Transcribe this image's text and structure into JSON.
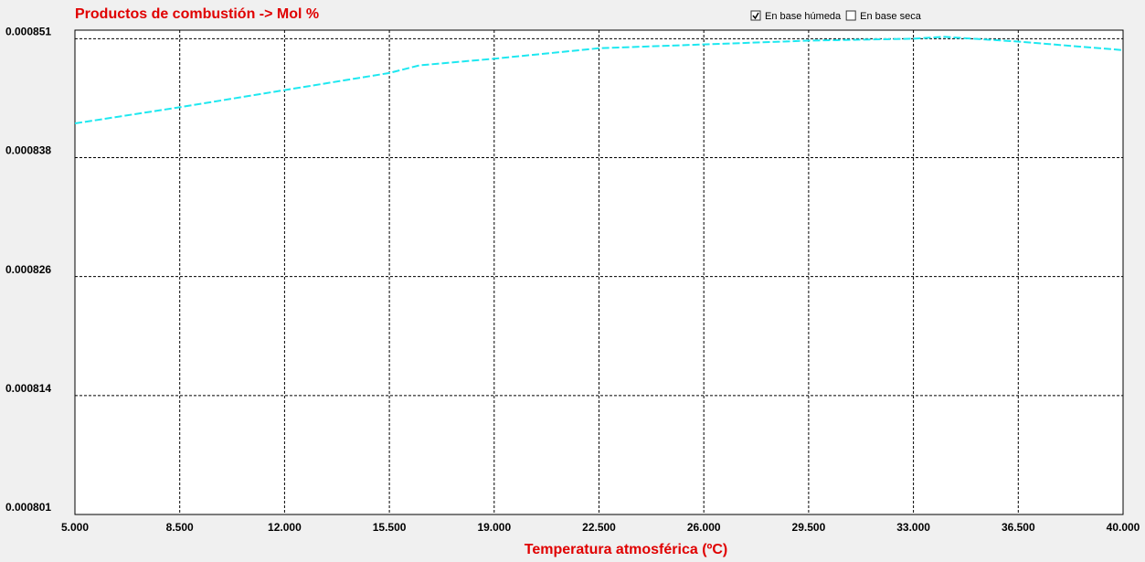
{
  "chart_data": {
    "type": "line",
    "title": "Productos de combustión -> Mol %",
    "x_label": "Temperatura atmosférica (ºC)",
    "x": [
      5,
      8.5,
      12,
      15.5,
      16.5,
      19,
      22.5,
      26,
      29.5,
      33,
      34,
      36.5,
      40
    ],
    "series": [
      {
        "color": "#1ee8f0",
        "values": [
          0.0008421,
          0.0008438,
          0.0008456,
          0.0008474,
          0.0008482,
          0.0008489,
          0.00085,
          0.0008504,
          0.0008508,
          0.000851,
          0.0008512,
          0.0008507,
          0.0008498
        ]
      }
    ],
    "xlim": [
      5,
      40
    ],
    "xticks": [
      {
        "value": 5,
        "label": "5.000"
      },
      {
        "value": 8.5,
        "label": "8.500"
      },
      {
        "value": 12,
        "label": "12.000"
      },
      {
        "value": 15.5,
        "label": "15.500"
      },
      {
        "value": 19,
        "label": "19.000"
      },
      {
        "value": 22.5,
        "label": "22.500"
      },
      {
        "value": 26,
        "label": "26.000"
      },
      {
        "value": 29.5,
        "label": "29.500"
      },
      {
        "value": 33,
        "label": "33.000"
      },
      {
        "value": 36.5,
        "label": "36.500"
      },
      {
        "value": 40,
        "label": "40.000"
      }
    ],
    "ylim": [
      0.000801,
      0.0008519
    ],
    "yticks": [
      0.000801,
      {
        "value": 0.0008135,
        "label": "0.000814"
      },
      0.000826,
      {
        "value": 0.0008385,
        "label": "0.000838"
      },
      0.000851
    ],
    "grid": true
  },
  "controls": [
    {
      "label": "En base húmeda",
      "checked": true
    },
    {
      "label": "En base seca",
      "checked": false
    }
  ]
}
